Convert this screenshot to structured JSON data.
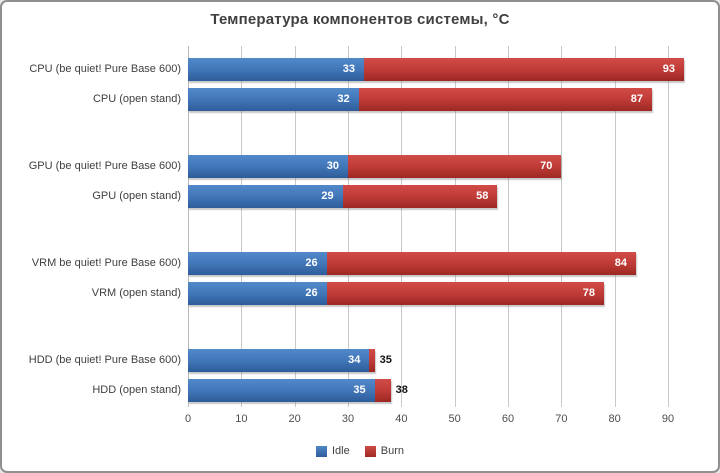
{
  "window": {
    "background": "#ffffff",
    "border_color": "#8f8f8f"
  },
  "chart_data": {
    "type": "bar",
    "orientation": "horizontal",
    "title": "Температура компонентов системы, °C",
    "categories": [
      "CPU (be quiet! Pure Base 600)",
      "CPU (open stand)",
      "GPU (be quiet! Pure Base 600)",
      "GPU (open stand)",
      "VRM be quiet! Pure Base 600)",
      "VRM (open stand)",
      "HDD (be quiet! Pure Base 600)",
      "HDD (open stand)"
    ],
    "series": [
      {
        "name": "Idle",
        "values": [
          33,
          32,
          30,
          29,
          26,
          26,
          34,
          35
        ],
        "color": "#3a6db3",
        "gradient_top": "#5289c9",
        "gradient_bottom": "#2e5c99"
      },
      {
        "name": "Burn",
        "values": [
          93,
          87,
          70,
          58,
          84,
          78,
          35,
          38
        ],
        "color": "#b53531",
        "gradient_top": "#d14c47",
        "gradient_bottom": "#9c2823"
      }
    ],
    "bar_style": "overlapped_from_zero",
    "groups": 4,
    "bars_per_group": 2,
    "x_ticks": [
      "0",
      "10",
      "20",
      "30",
      "40",
      "50",
      "60",
      "70",
      "80",
      "90"
    ],
    "xlim": [
      0,
      97.7
    ],
    "grid": "vertical",
    "gridline_color": "#c9c9c9",
    "legend_position": "bottom",
    "value_labels": {
      "inside_color": "#ffffff",
      "outside_color": "#000000"
    }
  },
  "legend": {
    "items": [
      {
        "label": "Idle",
        "color": "#3a6db3"
      },
      {
        "label": "Burn",
        "color": "#b53531"
      }
    ]
  }
}
